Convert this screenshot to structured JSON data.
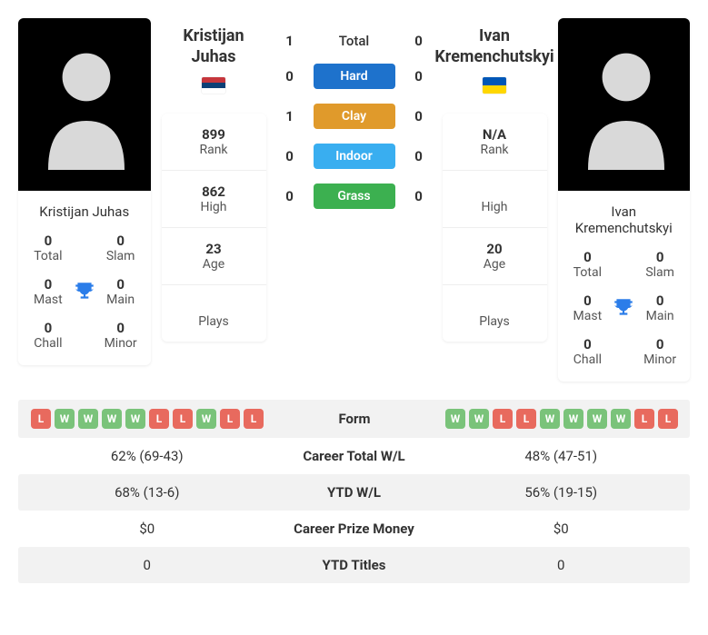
{
  "colors": {
    "win_badge": "#7ac37a",
    "loss_badge": "#e86a5e",
    "hard": "#1e72cc",
    "clay": "#e09a2b",
    "indoor": "#39aef0",
    "grass": "#3cb050",
    "trophy": "#2b7de9",
    "row_alt": "#f2f2f2"
  },
  "player1": {
    "name": "Kristijan Juhas",
    "country": "Serbia",
    "titles": {
      "total": {
        "value": "0",
        "label": "Total"
      },
      "slam": {
        "value": "0",
        "label": "Slam"
      },
      "mast": {
        "value": "0",
        "label": "Mast"
      },
      "main": {
        "value": "0",
        "label": "Main"
      },
      "chall": {
        "value": "0",
        "label": "Chall"
      },
      "minor": {
        "value": "0",
        "label": "Minor"
      }
    },
    "stats": {
      "rank": {
        "value": "899",
        "label": "Rank"
      },
      "high": {
        "value": "862",
        "label": "High"
      },
      "age": {
        "value": "23",
        "label": "Age"
      },
      "plays": {
        "value": "",
        "label": "Plays"
      }
    },
    "form": [
      "L",
      "W",
      "W",
      "W",
      "W",
      "L",
      "L",
      "W",
      "L",
      "L"
    ],
    "career_wl": "62% (69-43)",
    "ytd_wl": "68% (13-6)",
    "prize": "$0",
    "ytd_titles": "0"
  },
  "player2": {
    "name": "Ivan Kremenchutskyi",
    "country": "Ukraine",
    "titles": {
      "total": {
        "value": "0",
        "label": "Total"
      },
      "slam": {
        "value": "0",
        "label": "Slam"
      },
      "mast": {
        "value": "0",
        "label": "Mast"
      },
      "main": {
        "value": "0",
        "label": "Main"
      },
      "chall": {
        "value": "0",
        "label": "Chall"
      },
      "minor": {
        "value": "0",
        "label": "Minor"
      }
    },
    "stats": {
      "rank": {
        "value": "N/A",
        "label": "Rank"
      },
      "high": {
        "value": "",
        "label": "High"
      },
      "age": {
        "value": "20",
        "label": "Age"
      },
      "plays": {
        "value": "",
        "label": "Plays"
      }
    },
    "form": [
      "W",
      "W",
      "L",
      "L",
      "W",
      "W",
      "W",
      "W",
      "L",
      "L"
    ],
    "career_wl": "48% (47-51)",
    "ytd_wl": "56% (19-15)",
    "prize": "$0",
    "ytd_titles": "0"
  },
  "h2h": {
    "total": {
      "label": "Total",
      "p1": "1",
      "p2": "0"
    },
    "surfaces": [
      {
        "label": "Hard",
        "color_key": "hard",
        "p1": "0",
        "p2": "0"
      },
      {
        "label": "Clay",
        "color_key": "clay",
        "p1": "1",
        "p2": "0"
      },
      {
        "label": "Indoor",
        "color_key": "indoor",
        "p1": "0",
        "p2": "0"
      },
      {
        "label": "Grass",
        "color_key": "grass",
        "p1": "0",
        "p2": "0"
      }
    ]
  },
  "compare_labels": {
    "form": "Form",
    "career_wl": "Career Total W/L",
    "ytd_wl": "YTD W/L",
    "prize": "Career Prize Money",
    "ytd_titles": "YTD Titles"
  }
}
